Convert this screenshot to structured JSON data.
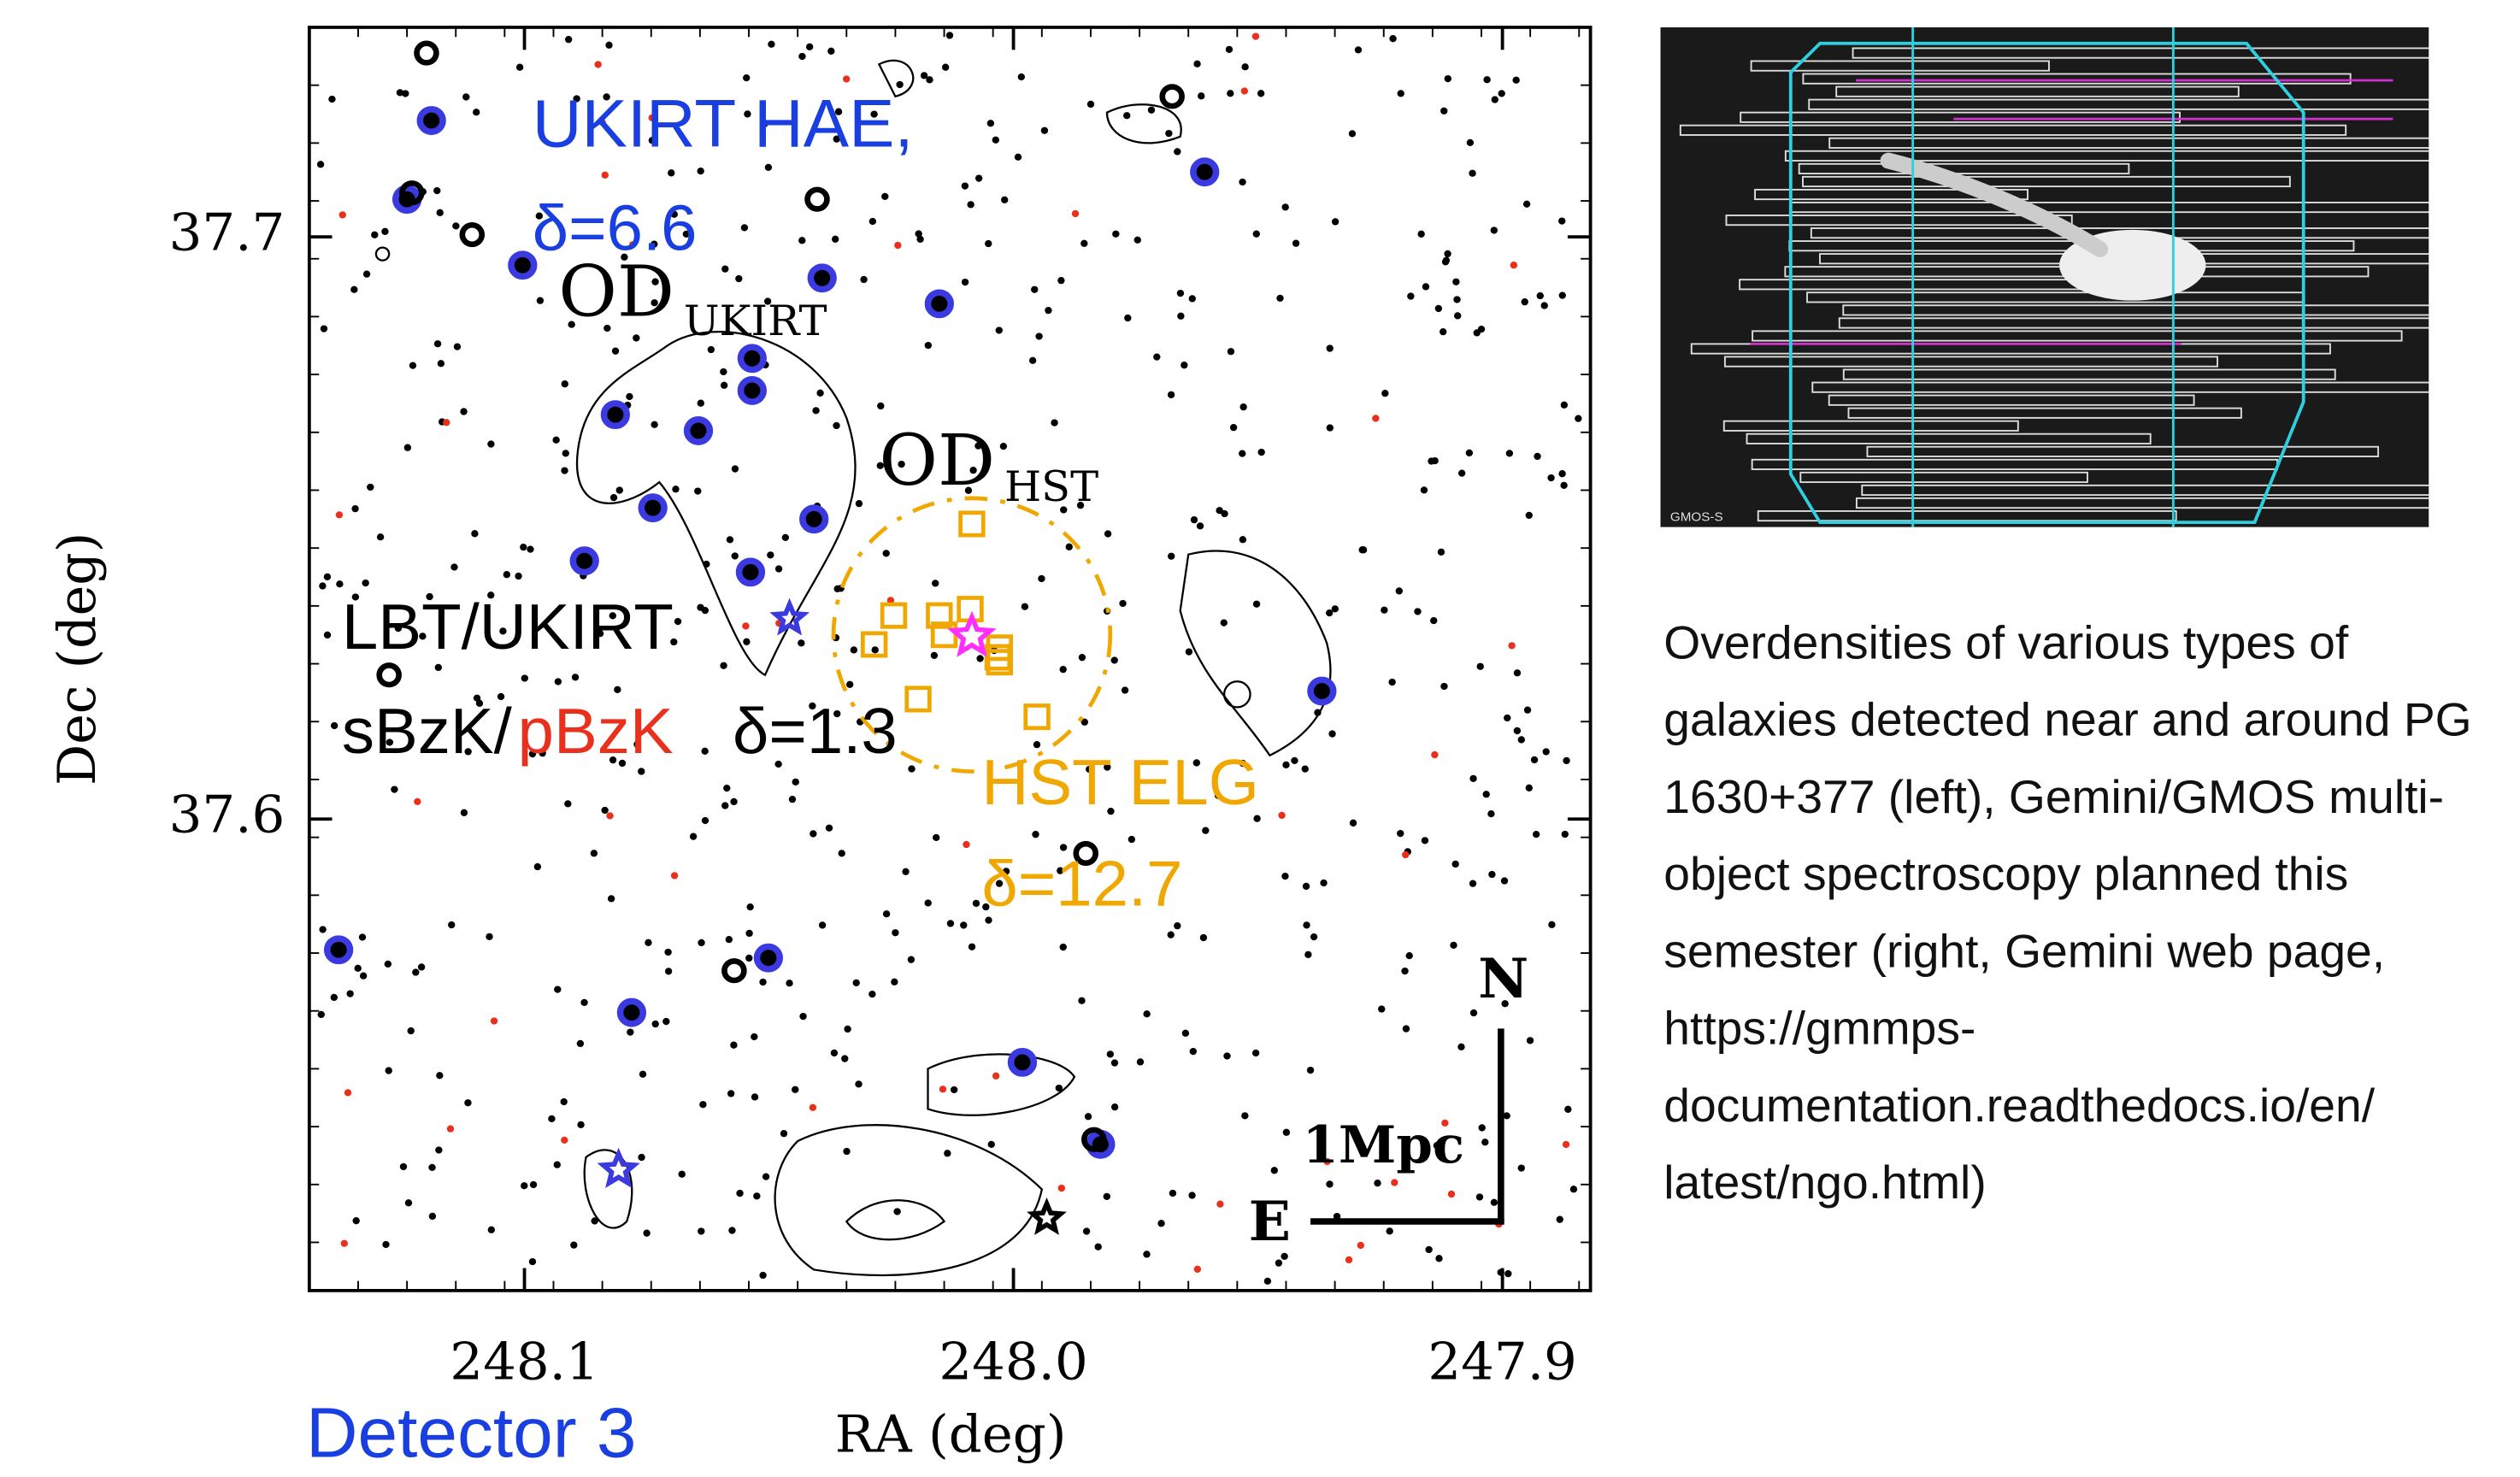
{
  "figure": {
    "xlabel": "RA (deg)",
    "ylabel": "Dec (deg)",
    "xlim": [
      248.144,
      247.882
    ],
    "ylim": [
      37.519,
      37.736
    ],
    "xticks": [
      248.1,
      {
        "value": 248,
        "label": "248.0"
      },
      247.9
    ],
    "yticks": [
      37.7,
      37.6
    ],
    "annotations": {
      "hae": "UKIRT HAE,",
      "hae_delta": "δ=6.6",
      "od_ukirt": "OD",
      "od_ukirt_sub": "UKIRT",
      "od_hst": "OD",
      "od_hst_sub": "HST",
      "lbt": "LBT/UKIRT",
      "sbzk": "sBzK/",
      "pbzk": "pBzK",
      "bzk_delta": "δ=1.3",
      "elg": "HST ELG",
      "elg_delta": "δ=12.7",
      "north": "N",
      "east": "E",
      "scale": "1Mpc"
    }
  },
  "detector_label": "Detector 3",
  "image": {
    "label": "GMOS-S"
  },
  "caption": [
    "Overdensities of various types of",
    "galaxies detected near and around PG",
    "1630+377 (left), Gemini/GMOS multi-",
    "object spectroscopy planned this",
    "semester (right, Gemini web page,",
    "https://gmmps-",
    "documentation.readthedocs.io/en/",
    "latest/ngo.html)"
  ]
}
